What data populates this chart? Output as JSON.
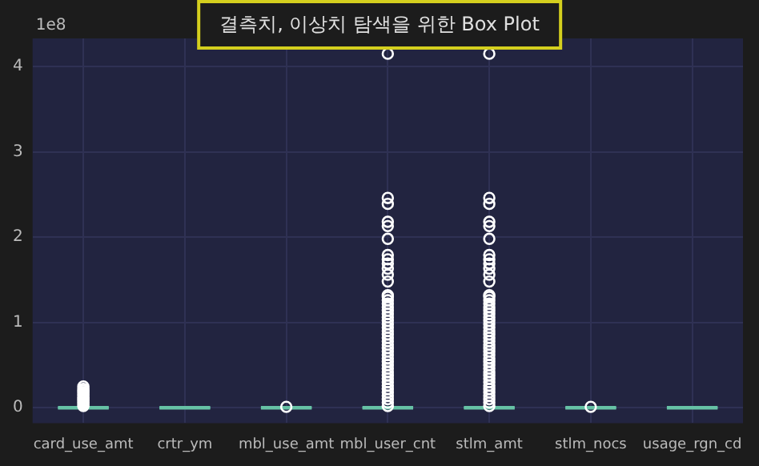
{
  "chart_data": {
    "type": "box",
    "title": "결측치, 이상치 탐색을 위한 Box Plot",
    "annotations": [
      "1e8"
    ],
    "categories": [
      "card_use_amt",
      "crtr_ym",
      "mbl_use_amt",
      "mbl_user_cnt",
      "stlm_amt",
      "stlm_nocs",
      "usage_rgn_cd"
    ],
    "ylim": [
      -0.18,
      4.33
    ],
    "yticks": [
      0,
      1,
      2,
      3,
      4
    ],
    "grid": true,
    "series": [
      {
        "color": "#66c2a5",
        "boxes": [
          {
            "low": 0,
            "q1": 0,
            "median": 0,
            "q3": 0,
            "high": 0,
            "outliers": [
              0.02,
              0.04,
              0.06,
              0.08,
              0.1,
              0.12,
              0.14,
              0.16,
              0.18,
              0.2,
              0.22,
              0.25
            ]
          },
          {
            "low": 0,
            "q1": 0,
            "median": 0,
            "q3": 0,
            "high": 0
          },
          {
            "low": 0,
            "q1": 0,
            "median": 0,
            "q3": 0,
            "high": 0,
            "outliers": [
              0.01
            ]
          },
          {
            "low": 0,
            "q1": 0,
            "median": 0,
            "q3": 0,
            "high": 0,
            "outliers": [
              0.02,
              0.06,
              0.1,
              0.14,
              0.18,
              0.22,
              0.26,
              0.3,
              0.34,
              0.38,
              0.42,
              0.46,
              0.5,
              0.54,
              0.58,
              0.62,
              0.66,
              0.7,
              0.74,
              0.78,
              0.82,
              0.86,
              0.9,
              0.94,
              0.98,
              1.02,
              1.06,
              1.1,
              1.14,
              1.18,
              1.22,
              1.26,
              1.3,
              1.32,
              1.48,
              1.56,
              1.63,
              1.69,
              1.74,
              1.79,
              1.98,
              2.13,
              2.18,
              2.39,
              2.46,
              4.15
            ]
          },
          {
            "low": 0,
            "q1": 0,
            "median": 0,
            "q3": 0,
            "high": 0,
            "outliers": [
              0.02,
              0.06,
              0.1,
              0.14,
              0.18,
              0.22,
              0.26,
              0.3,
              0.34,
              0.38,
              0.42,
              0.46,
              0.5,
              0.54,
              0.58,
              0.62,
              0.66,
              0.7,
              0.74,
              0.78,
              0.82,
              0.86,
              0.9,
              0.94,
              0.98,
              1.02,
              1.06,
              1.1,
              1.14,
              1.18,
              1.22,
              1.26,
              1.3,
              1.32,
              1.48,
              1.56,
              1.63,
              1.69,
              1.74,
              1.79,
              1.98,
              2.13,
              2.18,
              2.39,
              2.46,
              4.15
            ]
          },
          {
            "low": 0,
            "q1": 0,
            "median": 0,
            "q3": 0,
            "high": 0,
            "outliers": [
              0.01
            ]
          },
          {
            "low": 0,
            "q1": 0,
            "median": 0,
            "q3": 0,
            "high": 0
          }
        ]
      }
    ]
  }
}
